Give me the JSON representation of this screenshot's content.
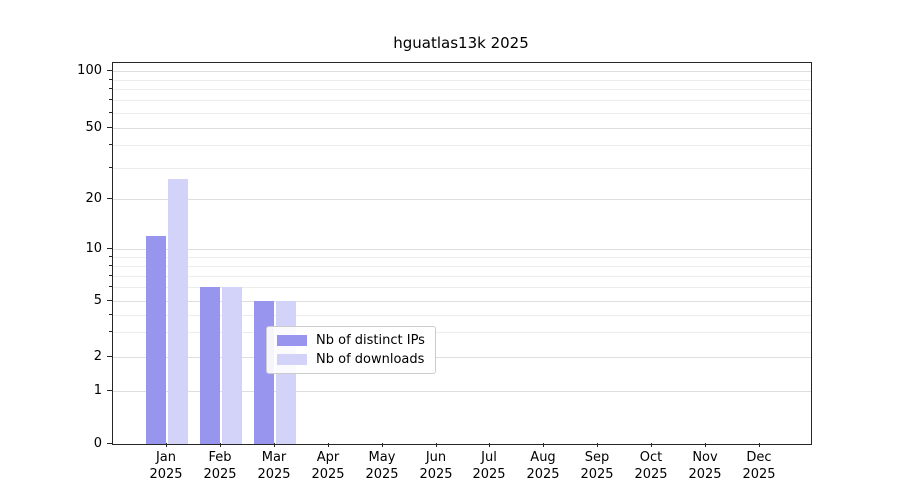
{
  "chart_data": {
    "type": "bar",
    "title": "hguatlas13k 2025",
    "xlabel": "",
    "ylabel": "",
    "year": "2025",
    "categories": [
      "Jan",
      "Feb",
      "Mar",
      "Apr",
      "May",
      "Jun",
      "Jul",
      "Aug",
      "Sep",
      "Oct",
      "Nov",
      "Dec"
    ],
    "series": [
      {
        "name": "Nb of distinct IPs",
        "color": "#9795ee",
        "values": [
          12,
          6,
          5,
          0,
          0,
          0,
          0,
          0,
          0,
          0,
          0,
          0
        ]
      },
      {
        "name": "Nb of downloads",
        "color": "#d3d2f8",
        "values": [
          26,
          6,
          5,
          0,
          0,
          0,
          0,
          0,
          0,
          0,
          0,
          0
        ]
      }
    ],
    "scale": "symlog",
    "ylim": [
      0,
      100
    ],
    "yticks": [
      0,
      1,
      2,
      5,
      10,
      20,
      50,
      100
    ],
    "minor_gridlines": [
      3,
      4,
      6,
      7,
      8,
      9,
      30,
      40,
      60,
      70,
      80,
      90
    ],
    "grid": "horizontal",
    "legend_position": "lower center"
  }
}
